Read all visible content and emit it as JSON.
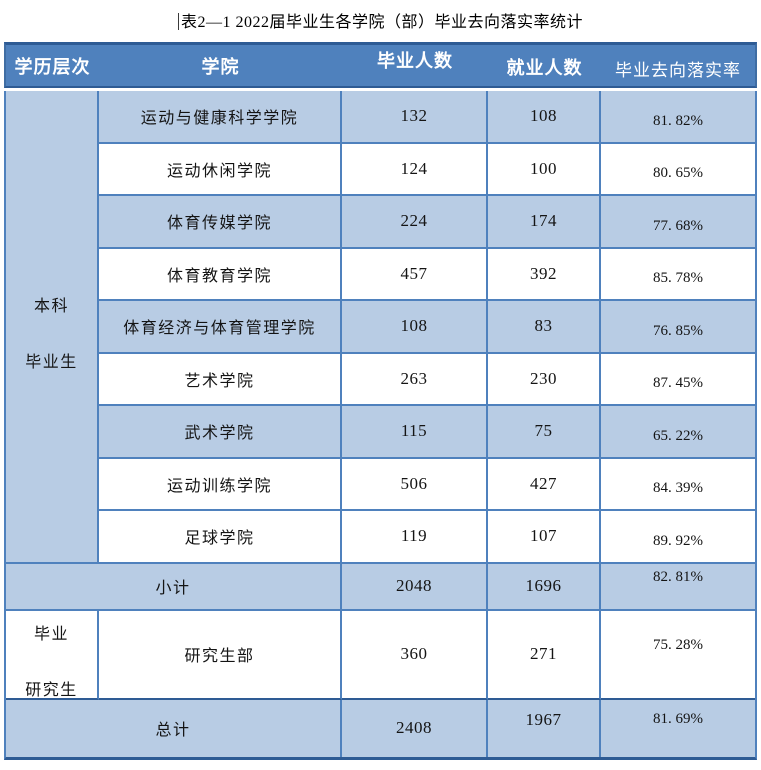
{
  "title": "表2—1 2022届毕业生各学院（部）毕业去向落实率统计",
  "colors": {
    "header_bg": "#4F81BD",
    "header_text": "#FFFFFF",
    "row_shade": "#B8CCE4",
    "grid_line": "#4F81BD",
    "frame_dark": "#2E5B94",
    "body_text": "#141414"
  },
  "table": {
    "columns": [
      "学历层次",
      "学院",
      "毕业人数",
      "就业人数",
      "毕业去向落实率"
    ],
    "groups": [
      {
        "level": "本科毕业生",
        "level_line1": "本科",
        "level_line2": "毕业生",
        "rows": [
          {
            "college": "运动与健康科学学院",
            "graduates": "132",
            "employed": "108",
            "rate": "81. 82%"
          },
          {
            "college": "运动休闲学院",
            "graduates": "124",
            "employed": "100",
            "rate": "80. 65%"
          },
          {
            "college": "体育传媒学院",
            "graduates": "224",
            "employed": "174",
            "rate": "77. 68%"
          },
          {
            "college": "体育教育学院",
            "graduates": "457",
            "employed": "392",
            "rate": "85. 78%"
          },
          {
            "college": "体育经济与体育管理学院",
            "graduates": "108",
            "employed": "83",
            "rate": "76. 85%"
          },
          {
            "college": "艺术学院",
            "graduates": "263",
            "employed": "230",
            "rate": "87. 45%"
          },
          {
            "college": "武术学院",
            "graduates": "115",
            "employed": "75",
            "rate": "65. 22%"
          },
          {
            "college": "运动训练学院",
            "graduates": "506",
            "employed": "427",
            "rate": "84. 39%"
          },
          {
            "college": "足球学院",
            "graduates": "119",
            "employed": "107",
            "rate": "89. 92%"
          }
        ],
        "subtotal": {
          "label": "小计",
          "graduates": "2048",
          "employed": "1696",
          "rate": "82. 81%"
        }
      },
      {
        "level": "毕业研究生",
        "level_line1": "毕业",
        "level_line2": "研究生",
        "rows": [
          {
            "college": "研究生部",
            "graduates": "360",
            "employed": "271",
            "rate": "75. 28%"
          }
        ]
      }
    ],
    "total": {
      "label": "总计",
      "graduates": "2408",
      "employed": "1967",
      "rate": "81. 69%"
    }
  }
}
